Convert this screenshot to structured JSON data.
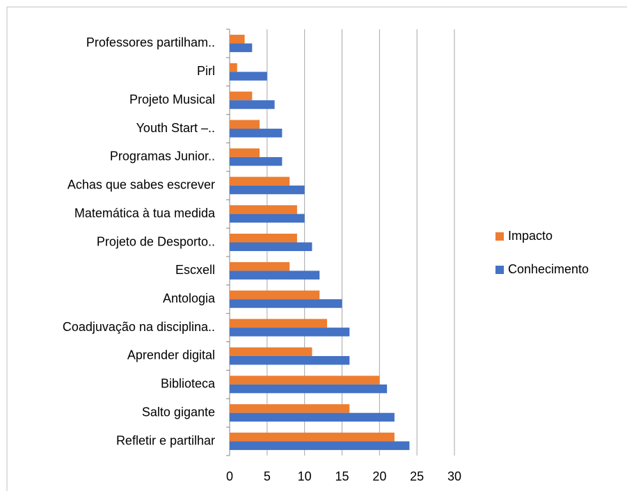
{
  "chart_data": {
    "type": "bar",
    "orientation": "horizontal",
    "categories": [
      "Professores partilham..",
      "Pirl",
      "Projeto Musical",
      "Youth Start –..",
      "Programas Junior..",
      "Achas que sabes escrever",
      "Matemática à tua medida",
      "Projeto de Desporto..",
      "Escxell",
      "Antologia",
      "Coadjuvação na disciplina..",
      "Aprender digital",
      "Biblioteca",
      "Salto gigante",
      "Refletir e partilhar"
    ],
    "series": [
      {
        "name": "Impacto",
        "color": "#ed7d31",
        "values": [
          2,
          1,
          3,
          4,
          4,
          8,
          9,
          9,
          8,
          12,
          13,
          11,
          20,
          16,
          22
        ]
      },
      {
        "name": "Conhecimento",
        "color": "#4472c4",
        "values": [
          3,
          5,
          6,
          7,
          7,
          10,
          10,
          11,
          12,
          15,
          16,
          16,
          21,
          22,
          24
        ]
      }
    ],
    "xlim": [
      0,
      30
    ],
    "xticks": [
      0,
      5,
      10,
      15,
      20,
      25,
      30
    ],
    "grid": true,
    "legend": "right"
  }
}
